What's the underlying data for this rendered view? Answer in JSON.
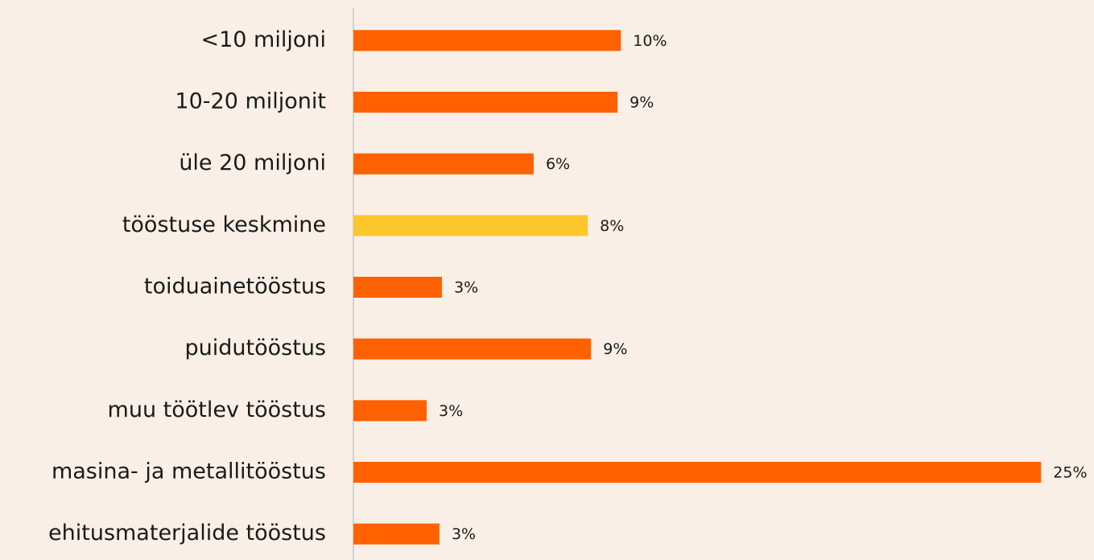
{
  "chart_data": {
    "type": "barh",
    "categories": [
      "<10 miljoni",
      "10-20 miljonit",
      "üle 20 miljoni",
      "tööstuse keskmine",
      "toiduainetööstus",
      "puidutööstus",
      "muu töötlev tööstus",
      "masina- ja metallitööstus",
      "ehitusmaterjalide tööstus"
    ],
    "values": [
      9.6,
      9.48,
      6.47,
      8.41,
      3.18,
      8.53,
      2.63,
      24.68,
      3.09
    ],
    "value_labels": [
      "10%",
      "9%",
      "6%",
      "8%",
      "3%",
      "9%",
      "3%",
      "25%",
      "3%"
    ],
    "colors": [
      "#ff6100",
      "#ff6100",
      "#ff6100",
      "#fcc72c",
      "#ff6100",
      "#ff6100",
      "#ff6100",
      "#ff6100",
      "#ff6100"
    ],
    "xlim": [
      0,
      26
    ]
  }
}
